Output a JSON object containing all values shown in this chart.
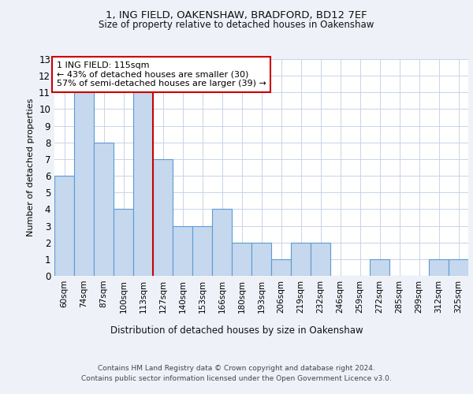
{
  "title1": "1, ING FIELD, OAKENSHAW, BRADFORD, BD12 7EF",
  "title2": "Size of property relative to detached houses in Oakenshaw",
  "xlabel": "Distribution of detached houses by size in Oakenshaw",
  "ylabel": "Number of detached properties",
  "categories": [
    "60sqm",
    "74sqm",
    "87sqm",
    "100sqm",
    "113sqm",
    "127sqm",
    "140sqm",
    "153sqm",
    "166sqm",
    "180sqm",
    "193sqm",
    "206sqm",
    "219sqm",
    "232sqm",
    "246sqm",
    "259sqm",
    "272sqm",
    "285sqm",
    "299sqm",
    "312sqm",
    "325sqm"
  ],
  "values": [
    6,
    11,
    8,
    4,
    11,
    7,
    3,
    3,
    4,
    2,
    2,
    1,
    2,
    2,
    0,
    0,
    1,
    0,
    0,
    1,
    1
  ],
  "bar_color": "#c5d8ed",
  "bar_edge_color": "#5b9bd5",
  "highlight_line_color": "#cc0000",
  "annotation_text": "1 ING FIELD: 115sqm\n← 43% of detached houses are smaller (30)\n57% of semi-detached houses are larger (39) →",
  "annotation_box_color": "#ffffff",
  "annotation_box_edge": "#cc0000",
  "ylim": [
    0,
    13
  ],
  "yticks": [
    0,
    1,
    2,
    3,
    4,
    5,
    6,
    7,
    8,
    9,
    10,
    11,
    12,
    13
  ],
  "footer1": "Contains HM Land Registry data © Crown copyright and database right 2024.",
  "footer2": "Contains public sector information licensed under the Open Government Licence v3.0.",
  "bg_color": "#eef2f8",
  "plot_bg_color": "#ffffff",
  "grid_color": "#c8d4e8"
}
